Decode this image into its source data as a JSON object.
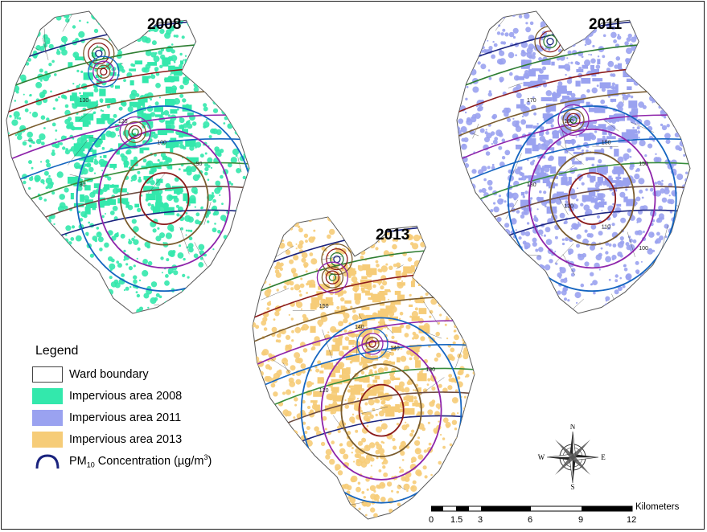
{
  "maps": [
    {
      "year": "2008",
      "fill": "#33e8ac",
      "contour_labels": [
        "130",
        "120",
        "100",
        "90",
        "80"
      ]
    },
    {
      "year": "2011",
      "fill": "#9aa2f0",
      "contour_labels": [
        "170",
        "160",
        "150",
        "150",
        "130",
        "120",
        "110",
        "100"
      ]
    },
    {
      "year": "2013",
      "fill": "#f6cc78",
      "contour_labels": [
        "150",
        "140",
        "140",
        "130",
        "120"
      ]
    }
  ],
  "legend": {
    "title": "Legend",
    "items": [
      {
        "label": "Ward boundary",
        "fill": "#ffffff",
        "kind": "box"
      },
      {
        "label": "Impervious area 2008",
        "fill": "#33e8ac",
        "kind": "box"
      },
      {
        "label": "Impervious area 2011",
        "fill": "#9aa2f0",
        "kind": "box"
      },
      {
        "label": "Impervious area 2013",
        "fill": "#f6cc78",
        "kind": "box"
      },
      {
        "label": "PM10 Concentration (µg/m3)",
        "fill": "#1a237e",
        "kind": "line"
      }
    ]
  },
  "scale_bar": {
    "unit": "Kilometers",
    "ticks": [
      "0",
      "1.5",
      "3",
      "6",
      "9",
      "12"
    ]
  },
  "compass": {
    "n": "N",
    "s": "S",
    "e": "E",
    "w": "W"
  },
  "colors": {
    "contours": [
      "#1a237e",
      "#2e7d32",
      "#8b1a1a",
      "#7a5c2e",
      "#8e24aa",
      "#1565c0",
      "#388e3c",
      "#6d4c41"
    ]
  }
}
